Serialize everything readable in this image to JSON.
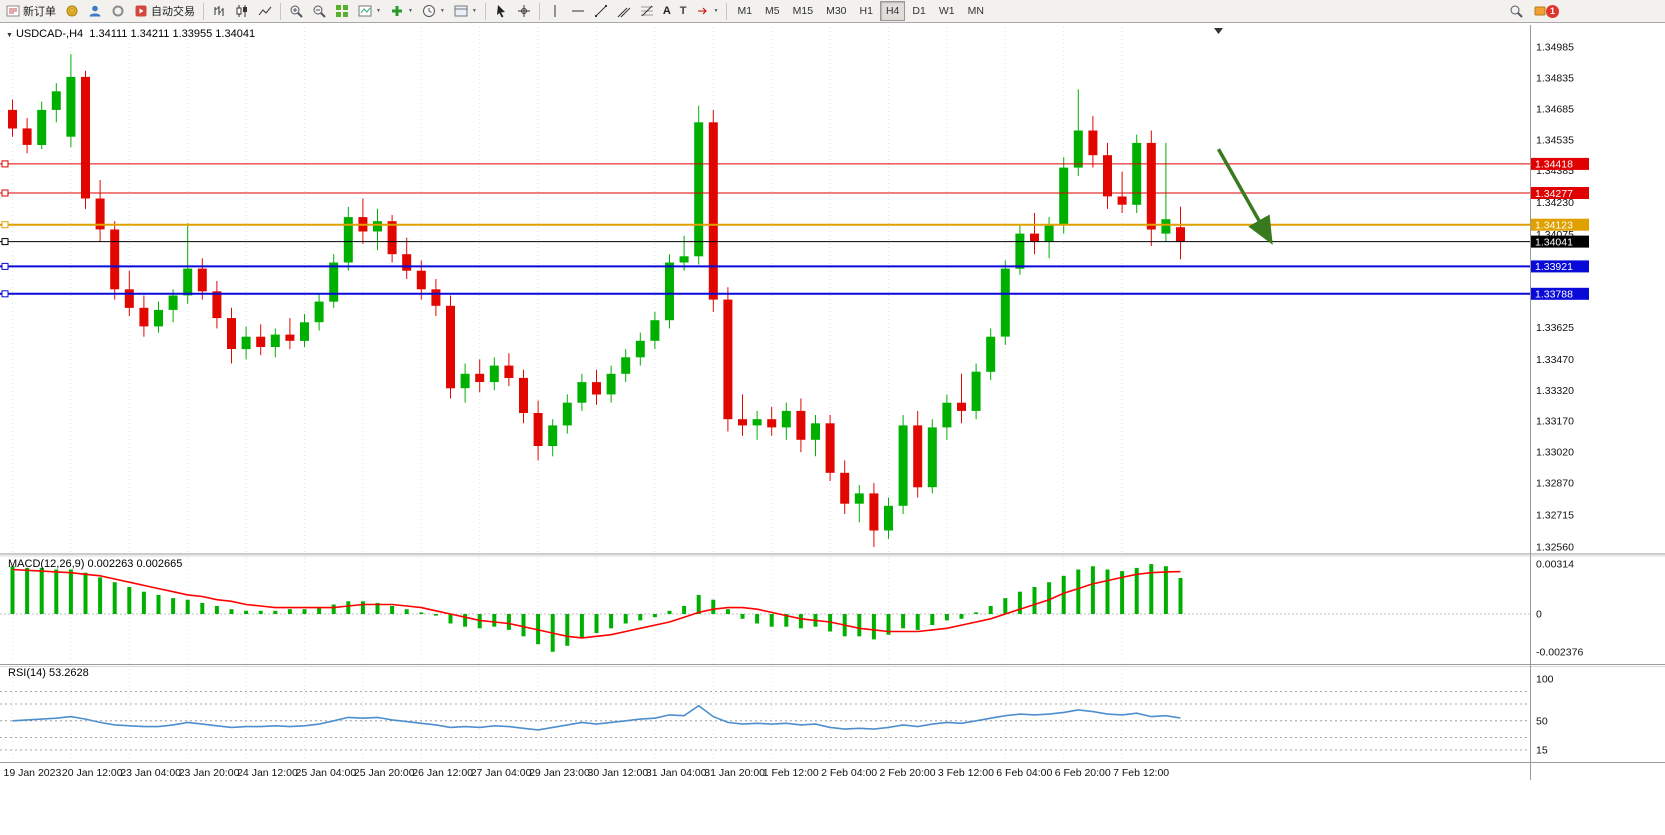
{
  "toolbar": {
    "new_order": "新订单",
    "autotrade": "自动交易",
    "timeframe_buttons": [
      "M1",
      "M5",
      "M15",
      "M30",
      "H1",
      "H4",
      "D1",
      "W1",
      "MN"
    ],
    "active_timeframe": "H4",
    "notification_count": "1"
  },
  "chart_header": {
    "symbol_period": "USDCAD-,H4",
    "ohlc": "1.34111 1.34211 1.33955 1.34041"
  },
  "chart_data": [
    {
      "type": "candlestick",
      "symbol": "USDCAD-",
      "timeframe": "H4",
      "open": 1.34111,
      "high": 1.34211,
      "low": 1.33955,
      "close": 1.34041,
      "colors": {
        "up": "#00b000",
        "down": "#e10600"
      },
      "y_axis": {
        "top_price": 1.34985,
        "bottom_price": 1.3256,
        "ticks": [
          "1.34985",
          "1.34835",
          "1.34685",
          "1.34535",
          "1.34385",
          "1.34230",
          "1.34075",
          "1.33625",
          "1.33470",
          "1.33320",
          "1.33170",
          "1.33020",
          "1.32870",
          "1.32715",
          "1.32560"
        ]
      },
      "x_axis": {
        "bars_per_label": 4,
        "labels": [
          "19 Jan 2023",
          "20 Jan 12:00",
          "23 Jan 04:00",
          "23 Jan 20:00",
          "24 Jan 12:00",
          "25 Jan 04:00",
          "25 Jan 20:00",
          "26 Jan 12:00",
          "27 Jan 04:00",
          "29 Jan 23:00",
          "30 Jan 12:00",
          "31 Jan 04:00",
          "31 Jan 20:00",
          "1 Feb 12:00",
          "2 Feb 04:00",
          "2 Feb 20:00",
          "3 Feb 12:00",
          "6 Feb 04:00",
          "6 Feb 20:00",
          "7 Feb 12:00"
        ]
      },
      "hlines": [
        {
          "price": 1.34418,
          "label": "1.34418",
          "color": "#e00000",
          "width": 1
        },
        {
          "price": 1.34277,
          "label": "1.34277",
          "color": "#e00000",
          "width": 1
        },
        {
          "price": 1.34123,
          "label": "1.34123",
          "color": "#dfa000",
          "width": 2
        },
        {
          "price": 1.34041,
          "label": "1.34041",
          "color": "#000000",
          "width": 1,
          "current": true
        },
        {
          "price": 1.33921,
          "label": "1.33921",
          "color": "#0a0ad8",
          "width": 2
        },
        {
          "price": 1.33788,
          "label": "1.33788",
          "color": "#0a0ad8",
          "width": 2
        }
      ],
      "annotation_arrow": {
        "bar_from": 82.6,
        "price_from": 1.3449,
        "bar_to": 86.2,
        "price_to": 1.3404,
        "color": "#3a7a1e"
      },
      "candles": [
        [
          1.3468,
          1.3473,
          1.3455,
          1.3459
        ],
        [
          1.3459,
          1.3464,
          1.3447,
          1.3451
        ],
        [
          1.3451,
          1.3472,
          1.3449,
          1.3468
        ],
        [
          1.3468,
          1.3481,
          1.3462,
          1.3477
        ],
        [
          1.3455,
          1.3495,
          1.345,
          1.3484
        ],
        [
          1.3484,
          1.3487,
          1.342,
          1.3425
        ],
        [
          1.3425,
          1.3434,
          1.3404,
          1.341
        ],
        [
          1.341,
          1.3414,
          1.3376,
          1.3381
        ],
        [
          1.3381,
          1.339,
          1.3368,
          1.3372
        ],
        [
          1.3372,
          1.3378,
          1.3358,
          1.3363
        ],
        [
          1.3363,
          1.3375,
          1.336,
          1.3371
        ],
        [
          1.3371,
          1.3381,
          1.3365,
          1.3378
        ],
        [
          1.3378,
          1.3413,
          1.3374,
          1.3391
        ],
        [
          1.3391,
          1.3396,
          1.3376,
          1.338
        ],
        [
          1.338,
          1.3385,
          1.3362,
          1.3367
        ],
        [
          1.3367,
          1.3372,
          1.3345,
          1.3352
        ],
        [
          1.3352,
          1.3363,
          1.3347,
          1.3358
        ],
        [
          1.3358,
          1.3364,
          1.3349,
          1.3353
        ],
        [
          1.3353,
          1.3362,
          1.3348,
          1.3359
        ],
        [
          1.3359,
          1.3367,
          1.3352,
          1.3356
        ],
        [
          1.3356,
          1.3369,
          1.3353,
          1.3365
        ],
        [
          1.3365,
          1.3379,
          1.3361,
          1.3375
        ],
        [
          1.3375,
          1.3398,
          1.3372,
          1.3394
        ],
        [
          1.3394,
          1.3421,
          1.339,
          1.3416
        ],
        [
          1.3416,
          1.3425,
          1.3403,
          1.3409
        ],
        [
          1.3409,
          1.342,
          1.34,
          1.3414
        ],
        [
          1.3414,
          1.3417,
          1.3394,
          1.3398
        ],
        [
          1.3398,
          1.3406,
          1.3386,
          1.339
        ],
        [
          1.339,
          1.3395,
          1.3376,
          1.3381
        ],
        [
          1.3381,
          1.3386,
          1.3368,
          1.3373
        ],
        [
          1.3373,
          1.3378,
          1.3328,
          1.3333
        ],
        [
          1.3333,
          1.3345,
          1.3326,
          1.334
        ],
        [
          1.334,
          1.3347,
          1.3331,
          1.3336
        ],
        [
          1.3336,
          1.3348,
          1.3332,
          1.3344
        ],
        [
          1.3344,
          1.335,
          1.3334,
          1.3338
        ],
        [
          1.3338,
          1.3342,
          1.3316,
          1.3321
        ],
        [
          1.3321,
          1.3327,
          1.3298,
          1.3305
        ],
        [
          1.3305,
          1.3318,
          1.33,
          1.3315
        ],
        [
          1.3315,
          1.333,
          1.3311,
          1.3326
        ],
        [
          1.3326,
          1.334,
          1.3322,
          1.3336
        ],
        [
          1.3336,
          1.3342,
          1.3325,
          1.333
        ],
        [
          1.333,
          1.3344,
          1.3326,
          1.334
        ],
        [
          1.334,
          1.3352,
          1.3336,
          1.3348
        ],
        [
          1.3348,
          1.336,
          1.3344,
          1.3356
        ],
        [
          1.3356,
          1.337,
          1.3352,
          1.3366
        ],
        [
          1.3366,
          1.3398,
          1.3362,
          1.3394
        ],
        [
          1.3394,
          1.3407,
          1.339,
          1.3397
        ],
        [
          1.3397,
          1.347,
          1.3393,
          1.3462
        ],
        [
          1.3462,
          1.3468,
          1.337,
          1.3376
        ],
        [
          1.3376,
          1.3382,
          1.3312,
          1.3318
        ],
        [
          1.3318,
          1.333,
          1.331,
          1.3315
        ],
        [
          1.3315,
          1.3322,
          1.3308,
          1.3318
        ],
        [
          1.3318,
          1.3324,
          1.331,
          1.3314
        ],
        [
          1.3314,
          1.3326,
          1.3308,
          1.3322
        ],
        [
          1.3322,
          1.3328,
          1.3302,
          1.3308
        ],
        [
          1.3308,
          1.332,
          1.33,
          1.3316
        ],
        [
          1.3316,
          1.332,
          1.3288,
          1.3292
        ],
        [
          1.3292,
          1.3298,
          1.3272,
          1.3277
        ],
        [
          1.3277,
          1.3286,
          1.3268,
          1.3282
        ],
        [
          1.3282,
          1.3287,
          1.3256,
          1.3264
        ],
        [
          1.3264,
          1.328,
          1.326,
          1.3276
        ],
        [
          1.3276,
          1.332,
          1.3272,
          1.3315
        ],
        [
          1.3315,
          1.3322,
          1.328,
          1.3285
        ],
        [
          1.3285,
          1.3318,
          1.3282,
          1.3314
        ],
        [
          1.3314,
          1.333,
          1.3308,
          1.3326
        ],
        [
          1.3326,
          1.334,
          1.3316,
          1.3322
        ],
        [
          1.3322,
          1.3345,
          1.3318,
          1.3341
        ],
        [
          1.3341,
          1.3362,
          1.3337,
          1.3358
        ],
        [
          1.3358,
          1.3395,
          1.3354,
          1.3391
        ],
        [
          1.3391,
          1.3412,
          1.3388,
          1.3408
        ],
        [
          1.3408,
          1.3418,
          1.3398,
          1.3404
        ],
        [
          1.3404,
          1.3416,
          1.3396,
          1.3412
        ],
        [
          1.3412,
          1.3445,
          1.3408,
          1.344
        ],
        [
          1.344,
          1.3478,
          1.3436,
          1.3458
        ],
        [
          1.3458,
          1.3465,
          1.344,
          1.3446
        ],
        [
          1.3446,
          1.3452,
          1.342,
          1.3426
        ],
        [
          1.3426,
          1.3438,
          1.3418,
          1.3422
        ],
        [
          1.3422,
          1.3456,
          1.3418,
          1.3452
        ],
        [
          1.3452,
          1.3458,
          1.3402,
          1.341
        ],
        [
          1.3408,
          1.3452,
          1.3404,
          1.3415
        ],
        [
          1.34111,
          1.34211,
          1.33955,
          1.34041
        ]
      ]
    },
    {
      "type": "bar+line",
      "name": "MACD(12,26,9)",
      "value_main": "0.002263",
      "value_signal": "0.002665",
      "colors": {
        "histogram": "#00b000",
        "signal": "#ff0000"
      },
      "scale": {
        "max": 0.00314,
        "min": -0.002376,
        "labels": [
          "0.00314",
          "0",
          "-0.002376"
        ]
      },
      "histogram": [
        0.003,
        0.0029,
        0.0029,
        0.0028,
        0.0028,
        0.0026,
        0.0023,
        0.002,
        0.0017,
        0.0014,
        0.0012,
        0.001,
        0.0009,
        0.0007,
        0.0005,
        0.0003,
        0.0002,
        0.0002,
        0.0002,
        0.0003,
        0.0003,
        0.0004,
        0.0006,
        0.0008,
        0.0008,
        0.0007,
        0.0005,
        0.0003,
        0.0001,
        -0.0001,
        -0.0006,
        -0.0008,
        -0.0009,
        -0.0008,
        -0.001,
        -0.0014,
        -0.0019,
        -0.002376,
        -0.002,
        -0.0015,
        -0.0012,
        -0.0009,
        -0.0006,
        -0.0004,
        -0.0002,
        0.0002,
        0.0005,
        0.0012,
        0.0009,
        0.0003,
        -0.0003,
        -0.0006,
        -0.0008,
        -0.0008,
        -0.0009,
        -0.0008,
        -0.0011,
        -0.0014,
        -0.0014,
        -0.0016,
        -0.0013,
        -0.0009,
        -0.001,
        -0.0007,
        -0.0004,
        -0.0003,
        0.0001,
        0.0005,
        0.001,
        0.0014,
        0.0017,
        0.002,
        0.0024,
        0.0028,
        0.003,
        0.0028,
        0.0027,
        0.0029,
        0.00314,
        0.003,
        0.002263
      ],
      "signal": [
        0.0028,
        0.00275,
        0.0027,
        0.00265,
        0.0026,
        0.0025,
        0.0024,
        0.0022,
        0.002,
        0.0018,
        0.0016,
        0.0014,
        0.0012,
        0.0011,
        0.0009,
        0.0008,
        0.0006,
        0.0005,
        0.0004,
        0.0004,
        0.0004,
        0.0004,
        0.0004,
        0.0005,
        0.0006,
        0.0006,
        0.0006,
        0.0005,
        0.0004,
        0.0002,
        0.0,
        -0.0002,
        -0.0004,
        -0.0005,
        -0.0006,
        -0.0008,
        -0.001,
        -0.0012,
        -0.0014,
        -0.0015,
        -0.0014,
        -0.0013,
        -0.0011,
        -0.0009,
        -0.0007,
        -0.0005,
        -0.0002,
        0.0001,
        0.0003,
        0.0004,
        0.0004,
        0.0003,
        0.0001,
        -0.0001,
        -0.0003,
        -0.0004,
        -0.0005,
        -0.0007,
        -0.0009,
        -0.001,
        -0.0011,
        -0.0011,
        -0.0011,
        -0.001,
        -0.0009,
        -0.0007,
        -0.0005,
        -0.0003,
        0.0,
        0.0003,
        0.0006,
        0.0009,
        0.0013,
        0.0016,
        0.0019,
        0.0021,
        0.0023,
        0.0025,
        0.0026,
        0.00265,
        0.002665
      ]
    },
    {
      "type": "line",
      "name": "RSI(14)",
      "value": "53.2628",
      "color": "#4d8fce",
      "scale_labels": [
        "100",
        "50",
        "15"
      ],
      "levels": [
        85,
        70,
        50,
        30,
        15
      ],
      "values": [
        50,
        51,
        52,
        53,
        55,
        52,
        48,
        45,
        44,
        43,
        43,
        45,
        48,
        46,
        44,
        42,
        43,
        43,
        44,
        43,
        44,
        46,
        50,
        54,
        53,
        54,
        51,
        49,
        47,
        45,
        42,
        43,
        42,
        44,
        43,
        41,
        39,
        42,
        45,
        48,
        46,
        48,
        50,
        52,
        53,
        57,
        56,
        68,
        55,
        48,
        46,
        47,
        46,
        47,
        45,
        46,
        42,
        40,
        41,
        40,
        42,
        45,
        43,
        46,
        48,
        47,
        50,
        53,
        56,
        58,
        57,
        58,
        60,
        63,
        61,
        58,
        57,
        59,
        55,
        56,
        53.2628
      ]
    }
  ]
}
